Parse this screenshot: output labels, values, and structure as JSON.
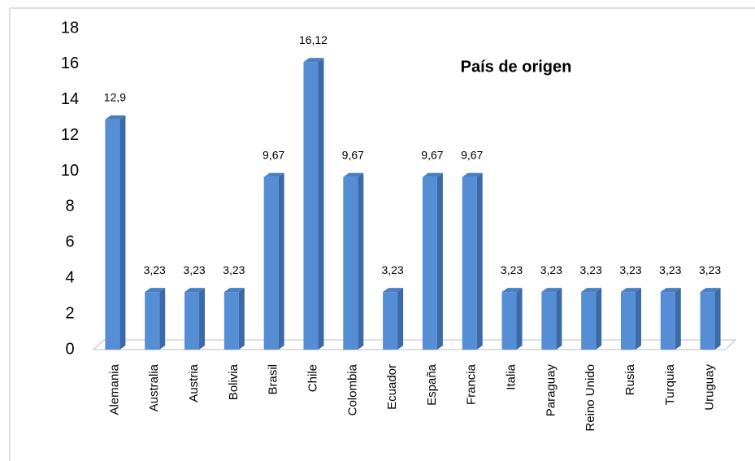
{
  "chart_data": {
    "type": "bar3d",
    "title": "País de origen",
    "categories": [
      "Alemania",
      "Australia",
      "Austria",
      "Bolivia",
      "Brasil",
      "Chile",
      "Colombia",
      "Ecuador",
      "España",
      "Francia",
      "Italia",
      "Paraguay",
      "Reino Unido",
      "Rusia",
      "Turquia",
      "Uruguay"
    ],
    "values": [
      12.9,
      3.23,
      3.23,
      3.23,
      9.67,
      16.12,
      9.67,
      3.23,
      9.67,
      9.67,
      3.23,
      3.23,
      3.23,
      3.23,
      3.23,
      3.23
    ],
    "value_labels": [
      "12,9",
      "3,23",
      "3,23",
      "3,23",
      "9,67",
      "16,12",
      "9,67",
      "3,23",
      "9,67",
      "9,67",
      "3,23",
      "3,23",
      "3,23",
      "3,23",
      "3,23",
      "3,23"
    ],
    "color": "#558ed5",
    "ylim": [
      0,
      18
    ],
    "yticks": [
      0,
      2,
      4,
      6,
      8,
      10,
      12,
      14,
      16,
      18
    ],
    "grid": false
  }
}
